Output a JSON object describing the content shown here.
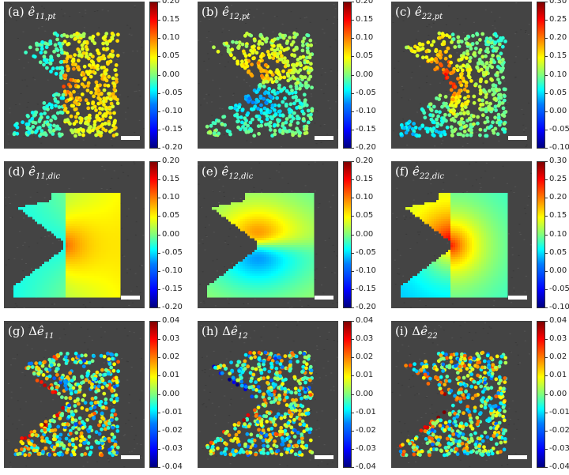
{
  "panels": [
    {
      "id": "a",
      "prefix": "(a) ",
      "delta": "",
      "sym": "ê",
      "sub": "11,pt",
      "type": "points",
      "field": "e11",
      "ticks": [
        "0.20",
        "0.15",
        "0.10",
        "0.05",
        "0.00",
        "-0.05",
        "-0.10",
        "-0.15",
        "-0.20"
      ],
      "range": [
        -0.2,
        0.2
      ]
    },
    {
      "id": "b",
      "prefix": "(b) ",
      "delta": "",
      "sym": "ê",
      "sub": "12,pt",
      "type": "points",
      "field": "e12",
      "ticks": [
        "0.20",
        "0.15",
        "0.10",
        "0.05",
        "0.00",
        "-0.05",
        "-0.10",
        "-0.15",
        "-0.20"
      ],
      "range": [
        -0.2,
        0.2
      ]
    },
    {
      "id": "c",
      "prefix": "(c) ",
      "delta": "",
      "sym": "ê",
      "sub": "22,pt",
      "type": "points",
      "field": "e22",
      "ticks": [
        "0.30",
        "0.25",
        "0.20",
        "0.15",
        "0.10",
        "0.05",
        "0.00",
        "-0.05",
        "-0.10"
      ],
      "range": [
        -0.1,
        0.3
      ]
    },
    {
      "id": "d",
      "prefix": "(d) ",
      "delta": "",
      "sym": "ê",
      "sub": "11,dic",
      "type": "field",
      "field": "e11",
      "ticks": [
        "0.20",
        "0.15",
        "0.10",
        "0.05",
        "0.00",
        "-0.05",
        "-0.10",
        "-0.15",
        "-0.20"
      ],
      "range": [
        -0.2,
        0.2
      ]
    },
    {
      "id": "e",
      "prefix": "(e) ",
      "delta": "",
      "sym": "ê",
      "sub": "12,dic",
      "type": "field",
      "field": "e12",
      "ticks": [
        "0.20",
        "0.15",
        "0.10",
        "0.05",
        "0.00",
        "-0.05",
        "-0.10",
        "-0.15",
        "-0.20"
      ],
      "range": [
        -0.2,
        0.2
      ]
    },
    {
      "id": "f",
      "prefix": "(f) ",
      "delta": "",
      "sym": "ê",
      "sub": "22,dic",
      "type": "field",
      "field": "e22",
      "ticks": [
        "0.30",
        "0.25",
        "0.20",
        "0.15",
        "0.10",
        "0.05",
        "0.00",
        "-0.05",
        "-0.10"
      ],
      "range": [
        -0.1,
        0.3
      ]
    },
    {
      "id": "g",
      "prefix": "(g) ",
      "delta": "Δ",
      "sym": "ê",
      "sub": "11",
      "type": "points",
      "field": "d11",
      "ticks": [
        "0.04",
        "0.03",
        "0.02",
        "0.01",
        "0.00",
        "-0.01",
        "-0.02",
        "-0.03",
        "-0.04"
      ],
      "range": [
        -0.04,
        0.04
      ]
    },
    {
      "id": "h",
      "prefix": "(h) ",
      "delta": "Δ",
      "sym": "ê",
      "sub": "12",
      "type": "points",
      "field": "d12",
      "ticks": [
        "0.04",
        "0.03",
        "0.02",
        "0.01",
        "0.00",
        "-0.01",
        "-0.02",
        "-0.03",
        "-0.04"
      ],
      "range": [
        -0.04,
        0.04
      ]
    },
    {
      "id": "i",
      "prefix": "(i) ",
      "delta": "Δ",
      "sym": "ê",
      "sub": "22",
      "type": "points",
      "field": "d22",
      "ticks": [
        "0.04",
        "0.03",
        "0.02",
        "0.01",
        "0.00",
        "-0.01",
        "-0.02",
        "-0.03",
        "-0.04"
      ],
      "range": [
        -0.04,
        0.04
      ]
    }
  ]
}
